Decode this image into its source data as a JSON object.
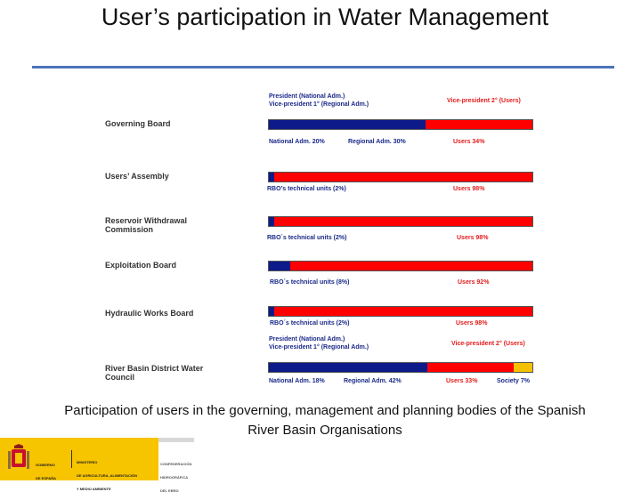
{
  "title": "User’s participation in Water Management",
  "caption": "Participation of users in the governing, management and planning bodies of the Spanish River Basin Organisations",
  "colors": {
    "national": "#0d1a8a",
    "regional": "#0d1a8a",
    "rbo": "#0d1a8a",
    "users": "#ff0000",
    "society": "#f5c000",
    "rule": "#4a74b8"
  },
  "footer": {
    "gov_line1": "GOBIERNO",
    "gov_line2": "DE ESPAÑA",
    "min_line1": "MINISTERIO",
    "min_line2": "DE AGRICULTURA, ALIMENTACIÓN",
    "min_line3": "Y MEDIO AMBIENTE",
    "conf_line1": "CONFEDERACIÓN",
    "conf_line2": "HIDROGRÁFICA",
    "conf_line3": "DEL EBRO"
  },
  "chart_data": {
    "type": "bar",
    "stacked": true,
    "orientation": "horizontal",
    "rows": [
      {
        "category": "Governing Board",
        "above_left": "President (National Adm.)\nVice-president 1° (Regional Adm.)",
        "above_right": "Vice-president 2° (Users)",
        "segments": [
          {
            "name": "National Adm.",
            "value": 20,
            "label": "National Adm. 20%",
            "color_key": "national"
          },
          {
            "name": "Regional Adm.",
            "value": 30,
            "label": "Regional Adm. 30%",
            "color_key": "regional"
          },
          {
            "name": "Users",
            "value": 34,
            "label": "Users 34%",
            "color_key": "users"
          }
        ]
      },
      {
        "category": "Users’ Assembly",
        "segments": [
          {
            "name": "RBO’s technical units",
            "value": 2,
            "label": "RBO’s technical units (2%)",
            "color_key": "rbo"
          },
          {
            "name": "Users",
            "value": 98,
            "label": "Users 98%",
            "color_key": "users"
          }
        ]
      },
      {
        "category": "Reservoir Withdrawal\nCommission",
        "segments": [
          {
            "name": "RBO´s technical units",
            "value": 2,
            "label": "RBO´s technical units (2%)",
            "color_key": "rbo"
          },
          {
            "name": "Users",
            "value": 98,
            "label": "Users 98%",
            "color_key": "users"
          }
        ]
      },
      {
        "category": "Exploitation Board",
        "segments": [
          {
            "name": "RBO´s technical units",
            "value": 8,
            "label": "RBO´s technical units (8%)",
            "color_key": "rbo"
          },
          {
            "name": "Users",
            "value": 92,
            "label": "Users 92%",
            "color_key": "users"
          }
        ]
      },
      {
        "category": "Hydraulic Works Board",
        "segments": [
          {
            "name": "RBO´s technical units",
            "value": 2,
            "label": "RBO´s technical units (2%)",
            "color_key": "rbo"
          },
          {
            "name": "Users",
            "value": 98,
            "label": "Users 98%",
            "color_key": "users"
          }
        ]
      },
      {
        "category": "River Basin District Water\nCouncil",
        "above_left": "President (National Adm.)\nVice-president 1° (Regional Adm.)",
        "above_right": "Vice-president 2° (Users)",
        "segments": [
          {
            "name": "National Adm.",
            "value": 18,
            "label": "National Adm. 18%",
            "color_key": "national"
          },
          {
            "name": "Regional Adm.",
            "value": 42,
            "label": "Regional Adm. 42%",
            "color_key": "regional"
          },
          {
            "name": "Users",
            "value": 33,
            "label": "Users 33%",
            "color_key": "users"
          },
          {
            "name": "Society",
            "value": 7,
            "label": "Society 7%",
            "color_key": "society"
          }
        ]
      }
    ]
  }
}
